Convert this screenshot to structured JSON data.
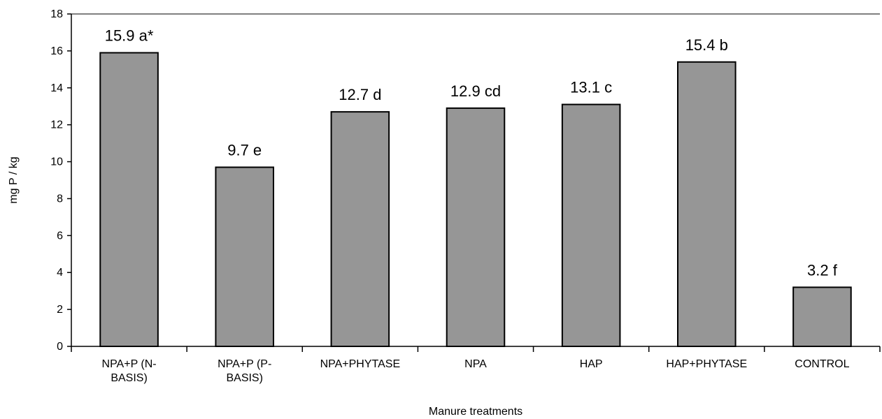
{
  "chart_data": {
    "type": "bar",
    "categories": [
      [
        "NPA+P (N-",
        "BASIS)"
      ],
      [
        "NPA+P (P-",
        "BASIS)"
      ],
      [
        "NPA+PHYTASE"
      ],
      [
        "NPA"
      ],
      [
        "HAP"
      ],
      [
        "HAP+PHYTASE"
      ],
      [
        "CONTROL"
      ]
    ],
    "values": [
      15.9,
      9.7,
      12.7,
      12.9,
      13.1,
      15.4,
      3.2
    ],
    "data_labels": [
      "15.9 a*",
      "9.7 e",
      "12.7 d",
      "12.9 cd",
      "13.1 c",
      "15.4 b",
      "3.2 f"
    ],
    "xlabel": "Manure treatments",
    "ylabel": "mg P / kg",
    "ylim": [
      0,
      18
    ],
    "yticks": [
      0,
      2,
      4,
      6,
      8,
      10,
      12,
      14,
      16,
      18
    ],
    "grid": false,
    "bar_color": "#969696",
    "bar_edge_color": "#000000",
    "top_border_color": "#808080"
  }
}
